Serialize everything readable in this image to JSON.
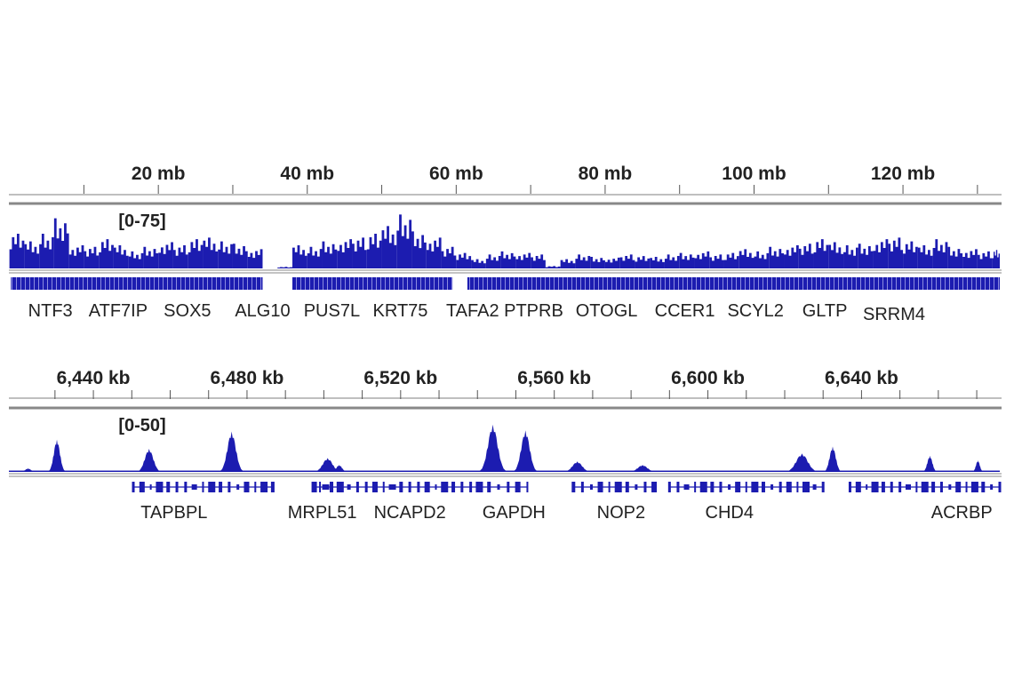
{
  "colors": {
    "signal": "#1c1cb0",
    "axis": "#999999",
    "text": "#222222"
  },
  "chart_data": [
    {
      "type": "area",
      "x_unit": "mb",
      "xlim": [
        0,
        133
      ],
      "ylim": [
        0,
        75
      ],
      "data_range_label": "[0-75]",
      "tick_labels": [
        {
          "value": 20,
          "label": "20 mb"
        },
        {
          "value": 40,
          "label": "40 mb"
        },
        {
          "value": 60,
          "label": "60 mb"
        },
        {
          "value": 80,
          "label": "80 mb"
        },
        {
          "value": 100,
          "label": "100 mb"
        },
        {
          "value": 120,
          "label": "120 mb"
        }
      ],
      "minor_ticks": [
        10,
        30,
        50,
        70,
        90,
        110,
        130
      ],
      "bin_size_mb": 2,
      "values": [
        45,
        35,
        45,
        65,
        30,
        28,
        38,
        30,
        22,
        28,
        34,
        30,
        38,
        40,
        35,
        32,
        25,
        0,
        2,
        30,
        28,
        35,
        38,
        40,
        45,
        55,
        70,
        48,
        40,
        28,
        20,
        12,
        18,
        22,
        20,
        18,
        3,
        12,
        18,
        15,
        14,
        18,
        16,
        15,
        18,
        20,
        22,
        18,
        20,
        25,
        22,
        28,
        30,
        32,
        38,
        34,
        30,
        32,
        38,
        40,
        35,
        30,
        38,
        28,
        25,
        22,
        24
      ],
      "gene_segments": [
        [
          0.2,
          34
        ],
        [
          38,
          59.5
        ],
        [
          61.5,
          133
        ]
      ],
      "genes": [
        {
          "name": "NTF3",
          "pos": 5.5
        },
        {
          "name": "ATF7IP",
          "pos": 14.6
        },
        {
          "name": "SOX5",
          "pos": 23.9
        },
        {
          "name": "ALG10",
          "pos": 34.0
        },
        {
          "name": "PUS7L",
          "pos": 43.3
        },
        {
          "name": "KRT75",
          "pos": 52.5
        },
        {
          "name": "TAFA2",
          "pos": 62.2
        },
        {
          "name": "PTPRB",
          "pos": 70.4
        },
        {
          "name": "OTOGL",
          "pos": 80.2
        },
        {
          "name": "CCER1",
          "pos": 90.7
        },
        {
          "name": "SCYL2",
          "pos": 100.2
        },
        {
          "name": "GLTP",
          "pos": 109.5
        },
        {
          "name": "SRRM4",
          "pos": 118.8
        }
      ]
    },
    {
      "type": "area",
      "x_unit": "kb",
      "xlim": [
        6418,
        6676
      ],
      "ylim": [
        0,
        50
      ],
      "data_range_label": "[0-50]",
      "tick_labels": [
        {
          "value": 6440,
          "label": "6,440 kb"
        },
        {
          "value": 6480,
          "label": "6,480 kb"
        },
        {
          "value": 6520,
          "label": "6,520 kb"
        },
        {
          "value": 6560,
          "label": "6,560 kb"
        },
        {
          "value": 6600,
          "label": "6,600 kb"
        },
        {
          "value": 6640,
          "label": "6,640 kb"
        }
      ],
      "minor_ticks": [
        6430,
        6450,
        6460,
        6470,
        6490,
        6500,
        6510,
        6530,
        6540,
        6550,
        6570,
        6580,
        6590,
        6610,
        6620,
        6630,
        6650,
        6660,
        6670
      ],
      "peaks": [
        {
          "pos": 6423,
          "height": 3,
          "width": 1.5
        },
        {
          "pos": 6430.5,
          "height": 28,
          "width": 1.6
        },
        {
          "pos": 6454.5,
          "height": 20,
          "width": 2.2
        },
        {
          "pos": 6476,
          "height": 35,
          "width": 2.2
        },
        {
          "pos": 6501,
          "height": 12,
          "width": 2.5
        },
        {
          "pos": 6504,
          "height": 6,
          "width": 1.5
        },
        {
          "pos": 6544,
          "height": 41,
          "width": 2.5
        },
        {
          "pos": 6552.5,
          "height": 36,
          "width": 2.2
        },
        {
          "pos": 6566,
          "height": 9,
          "width": 2.5
        },
        {
          "pos": 6583,
          "height": 6,
          "width": 2.5
        },
        {
          "pos": 6624.5,
          "height": 16,
          "width": 3
        },
        {
          "pos": 6632.5,
          "height": 22,
          "width": 1.6
        },
        {
          "pos": 6657.8,
          "height": 14,
          "width": 1.3
        },
        {
          "pos": 6670.3,
          "height": 10,
          "width": 1
        }
      ],
      "gene_models": [
        {
          "start": 6450.4,
          "end": 6486.7
        },
        {
          "start": 6497.5,
          "end": 6502
        },
        {
          "start": 6502,
          "end": 6540.5
        },
        {
          "start": 6540.5,
          "end": 6553
        },
        {
          "start": 6565,
          "end": 6586
        },
        {
          "start": 6590,
          "end": 6630
        },
        {
          "start": 6637,
          "end": 6676
        }
      ],
      "genes": [
        {
          "name": "TAPBPL",
          "pos": 6461
        },
        {
          "name": "MRPL51",
          "pos": 6499.6
        },
        {
          "name": "NCAPD2",
          "pos": 6522.4
        },
        {
          "name": "GAPDH",
          "pos": 6549.5
        },
        {
          "name": "NOP2",
          "pos": 6577.4
        },
        {
          "name": "CHD4",
          "pos": 6605.6
        },
        {
          "name": "ACRBP",
          "pos": 6666.1
        }
      ]
    }
  ]
}
